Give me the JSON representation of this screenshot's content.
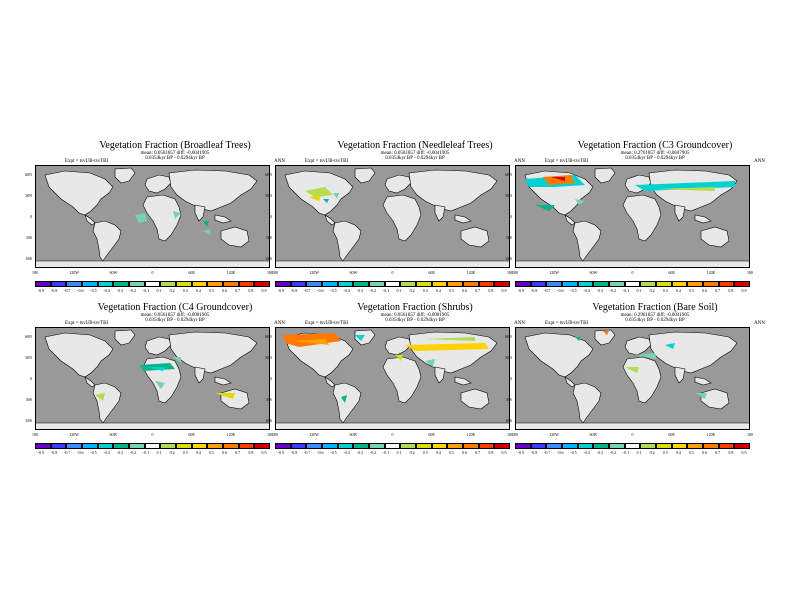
{
  "legend_colors": [
    "#6a00c8",
    "#3c3cff",
    "#3c8cff",
    "#00b4ff",
    "#00d2d2",
    "#00b48c",
    "#78d2b4",
    "#ffffff",
    "#b4dc50",
    "#dcdc00",
    "#ffd200",
    "#ffa000",
    "#ff7800",
    "#ff3c00",
    "#d20000"
  ],
  "colors": {
    "ocean": "#999999",
    "land": "#e8e8e8",
    "frame": "#000000"
  },
  "lat_labels": [
    "60N",
    "30N",
    "0",
    "30S",
    "60S"
  ],
  "lon_labels": [
    "180",
    "120W",
    "60W",
    "0",
    "60E",
    "120E",
    "180"
  ],
  "panels": [
    {
      "title": "Vegetation Fraction (Broadleaf Trees)",
      "sub1": "mean: 0.0561857 diff: -0.0041905",
      "sub2": "0.0354kyr BP  -  0.0294kyr BP",
      "expt": "Expt = tsvUB-tsvTBI",
      "ann": "ANN",
      "cbar_labels": [
        "-0.9",
        "-0.8",
        "-0.7",
        "-0.6",
        "-0.5",
        "-0.4",
        "-0.3",
        "-0.2",
        "-0.1",
        "0.1",
        "0.2",
        "0.3",
        "0.4",
        "0.5",
        "0.6",
        "0.7",
        "0.8",
        "0.9"
      ]
    },
    {
      "title": "Vegetation Fraction (Needleleaf Trees)",
      "sub1": "mean: 0.0561857 diff: -0.0041905",
      "sub2": "0.0354kyr BP  -  0.0294kyr BP",
      "expt": "Expt = tsvUB-tsvTBI",
      "ann": "ANN",
      "cbar_labels": [
        "-0.9",
        "-0.8",
        "-0.7",
        "-0.6",
        "-0.5",
        "-0.4",
        "-0.3",
        "-0.2",
        "-0.1",
        "0.1",
        "0.2",
        "0.3",
        "0.4",
        "0.5",
        "0.6",
        "0.7",
        "0.8",
        "0.9"
      ]
    },
    {
      "title": "Vegetation Fraction (C3 Groundcover)",
      "sub1": "mean: 0.2761857 diff: -0.0847905",
      "sub2": "0.0354kyr BP  -  0.0294kyr BP",
      "expt": "Expt = tsvUB-tsvTBI",
      "ann": "ANN",
      "cbar_labels": [
        "-0.9",
        "-0.8",
        "-0.7",
        "-0.6",
        "-0.5",
        "-0.4",
        "-0.3",
        "-0.2",
        "-0.1",
        "0.1",
        "0.2",
        "0.3",
        "0.4",
        "0.5",
        "0.6",
        "0.7",
        "0.8",
        "0.9"
      ]
    },
    {
      "title": "Vegetation Fraction (C4 Groundcover)",
      "sub1": "mean: 0.0561857 diff: -0.0081905",
      "sub2": "0.0354kyr BP  -  0.0294kyr BP",
      "expt": "Expt = tsvUB-tsvTBI",
      "ann": "ANN",
      "cbar_labels": [
        "-0.9",
        "-0.8",
        "-0.7",
        "-0.6",
        "-0.5",
        "-0.4",
        "-0.3",
        "-0.2",
        "-0.1",
        "0.1",
        "0.2",
        "0.3",
        "0.4",
        "0.5",
        "0.6",
        "0.7",
        "0.8",
        "0.9"
      ]
    },
    {
      "title": "Vegetation Fraction (Shrubs)",
      "sub1": "mean: 0.0561857 diff: -0.0081905",
      "sub2": "0.0354kyr BP  -  0.0294kyr BP",
      "expt": "Expt = tsvUB-tsvTBI",
      "ann": "ANN",
      "cbar_labels": [
        "-0.9",
        "-0.8",
        "-0.7",
        "-0.6",
        "-0.5",
        "-0.4",
        "-0.3",
        "-0.2",
        "-0.1",
        "0.1",
        "0.2",
        "0.3",
        "0.4",
        "0.5",
        "0.6",
        "0.7",
        "0.8",
        "0.9"
      ]
    },
    {
      "title": "Vegetation Fraction (Bare Soil)",
      "sub1": "mean: 0.2961857 diff: -0.0041905",
      "sub2": "0.0354kyr BP  -  0.0294kyr BP",
      "expt": "Expt = tsvUB-tsvTBI",
      "ann": "ANN",
      "cbar_labels": [
        "-0.9",
        "-0.8",
        "-0.7",
        "-0.6",
        "-0.5",
        "-0.4",
        "-0.3",
        "-0.2",
        "-0.1",
        "0.1",
        "0.2",
        "0.3",
        "0.4",
        "0.5",
        "0.6",
        "0.7",
        "0.8",
        "0.9"
      ]
    }
  ]
}
